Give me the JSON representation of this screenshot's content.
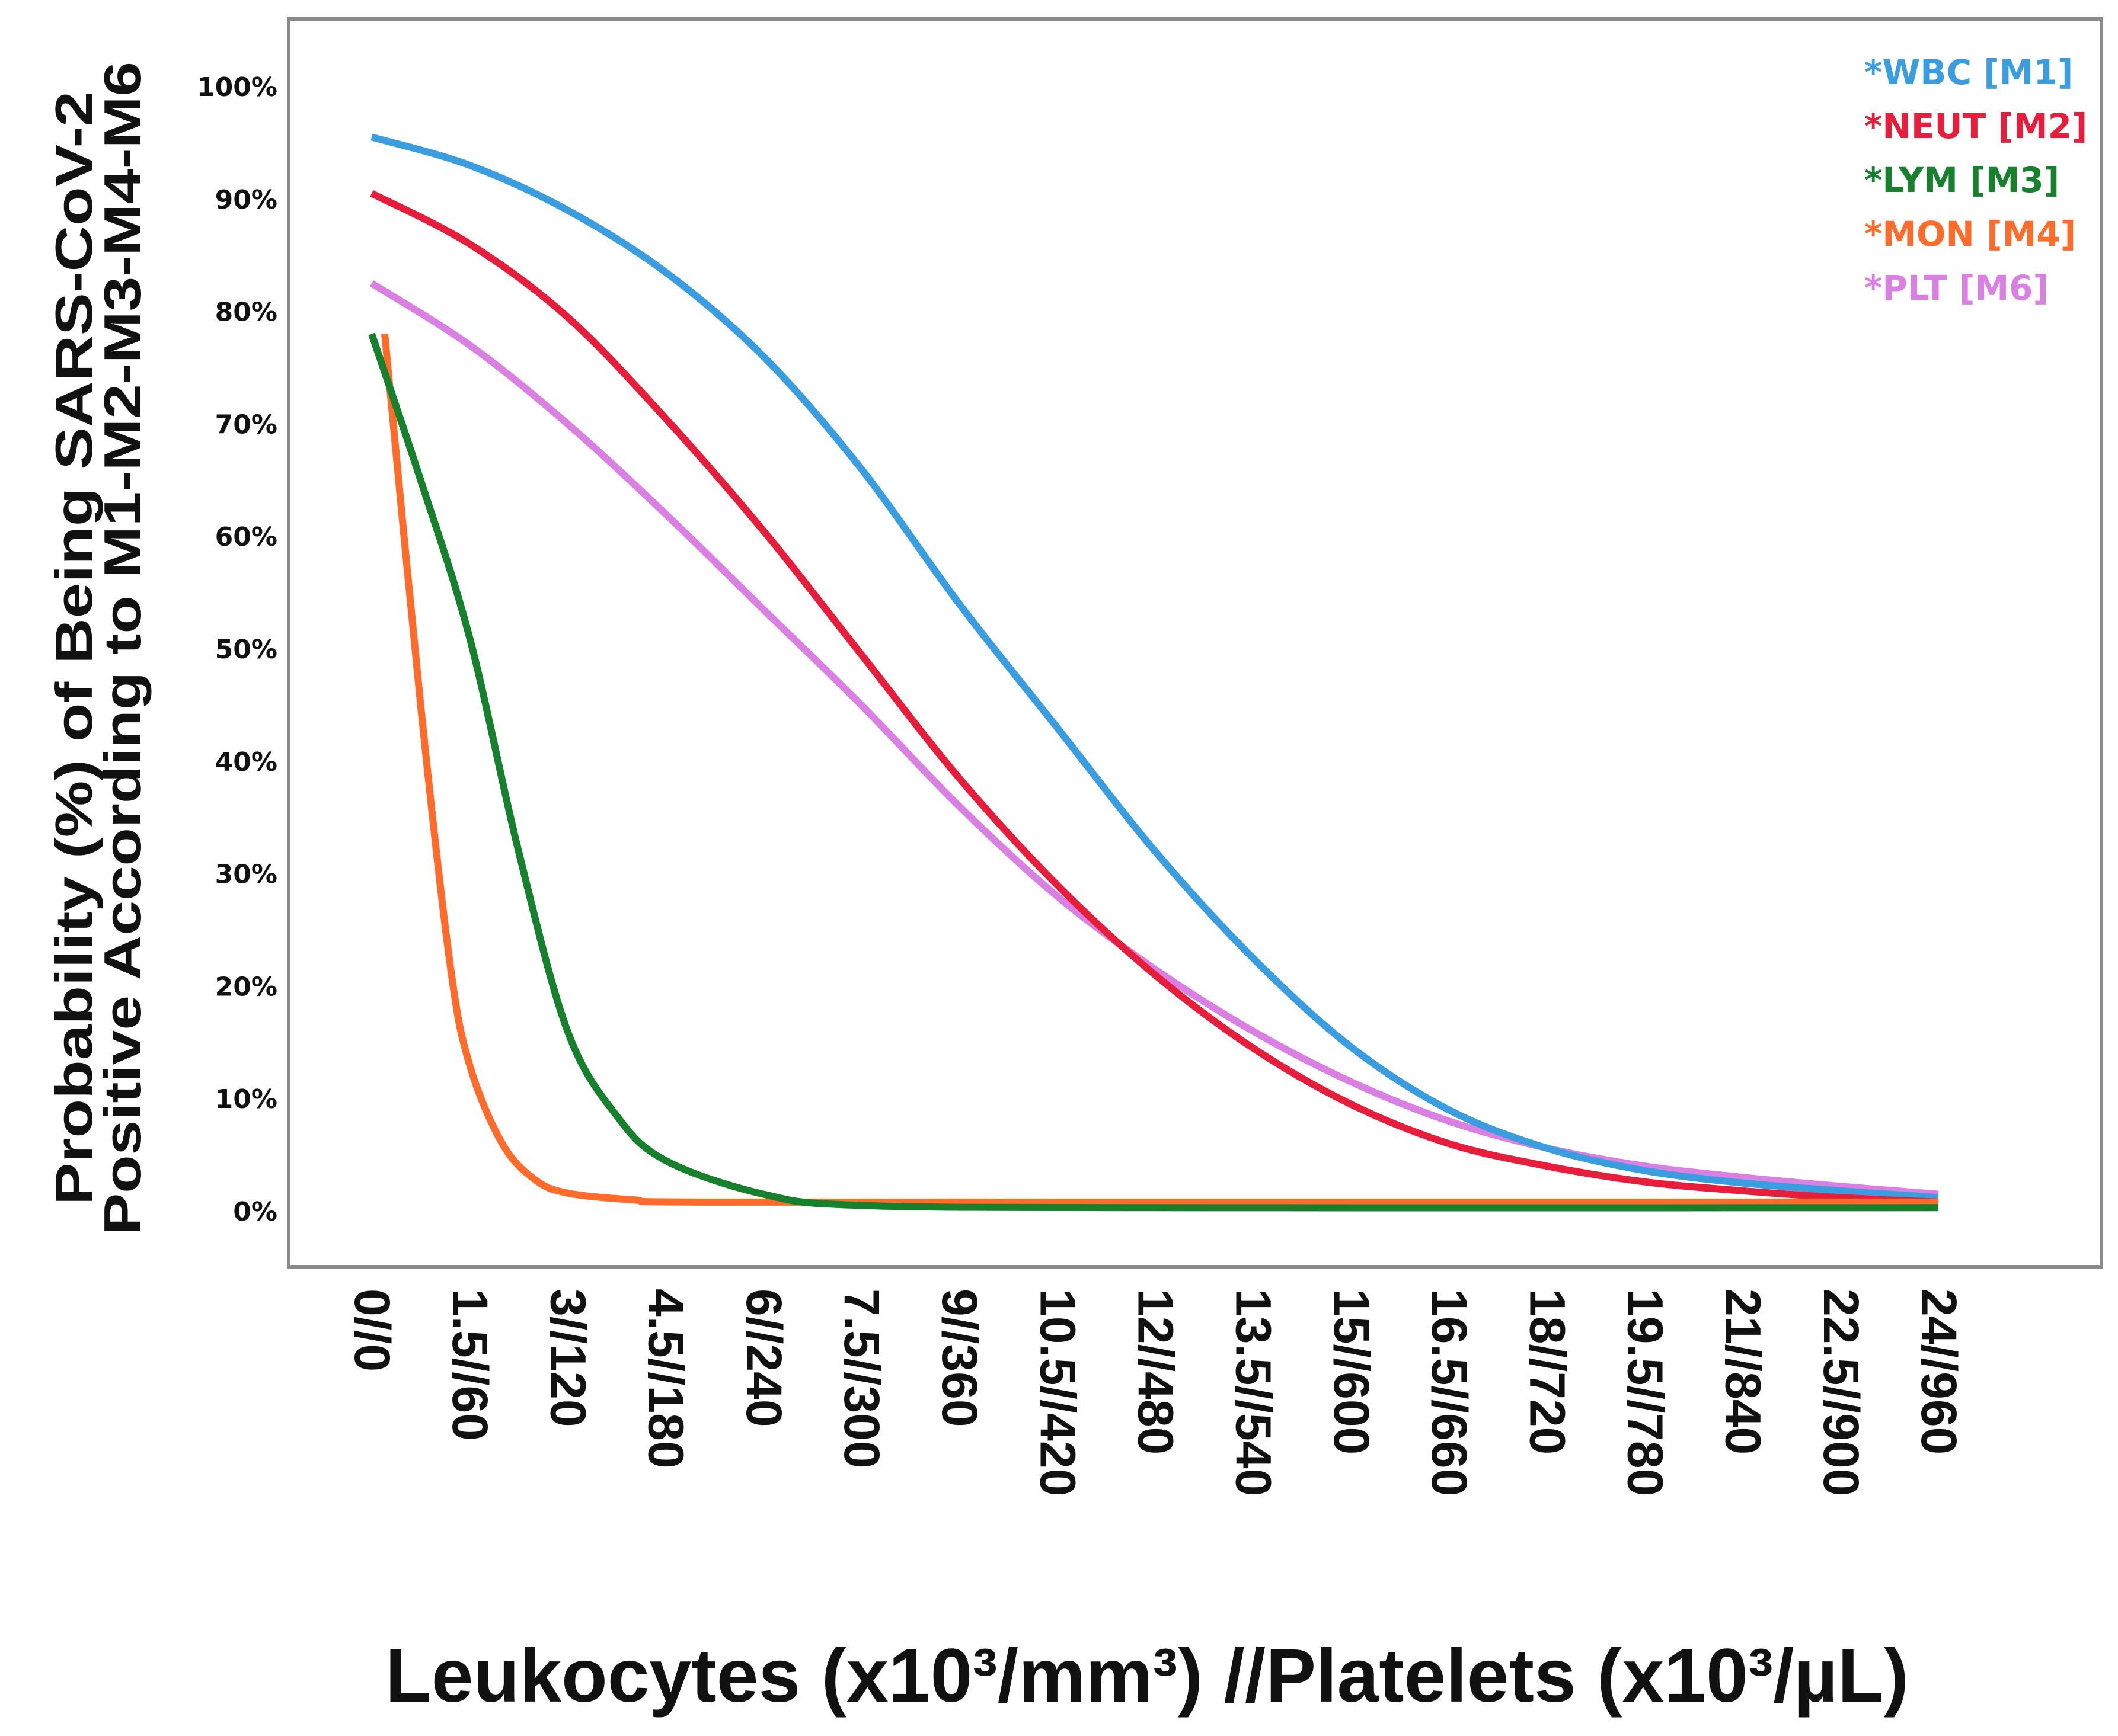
{
  "chart_data": {
    "type": "line",
    "title": "",
    "xlabel": "Leukocytes (x10³/mm³) //Platelets (x10³/µL)",
    "ylabel_lines": [
      "Probability (%) of Being SARS-CoV-2",
      "Positive According to M1-M2-M3-M4-M6"
    ],
    "xlim": [
      0,
      24
    ],
    "ylim": [
      0,
      100
    ],
    "x_ticks": [
      0,
      1.5,
      3,
      4.5,
      6,
      7.5,
      9,
      10.5,
      12,
      13.5,
      15,
      16.5,
      18,
      19.5,
      21,
      22.5,
      24
    ],
    "x_tick_labels": [
      "0//0",
      "1.5//60",
      "3//120",
      "4.5//180",
      "6//240",
      "7.5//300",
      "9//360",
      "10.5//420",
      "12//480",
      "13.5//540",
      "15//600",
      "16.5//660",
      "18//720",
      "19.5//780",
      "21//840",
      "22.5//900",
      "24//960"
    ],
    "y_ticks": [
      0,
      10,
      20,
      30,
      40,
      50,
      60,
      70,
      80,
      90,
      100
    ],
    "y_tick_labels": [
      "0%",
      "10%",
      "20%",
      "30%",
      "40%",
      "50%",
      "60%",
      "70%",
      "80%",
      "90%",
      "100%"
    ],
    "grid": false,
    "legend_position": "top-right",
    "series": [
      {
        "name": "*WBC [M1]",
        "color": "#3a9de0",
        "points": [
          [
            0,
            95.5
          ],
          [
            1.5,
            93
          ],
          [
            3,
            89
          ],
          [
            4.5,
            83.5
          ],
          [
            6,
            76
          ],
          [
            7.5,
            66
          ],
          [
            9,
            54
          ],
          [
            10.5,
            43
          ],
          [
            12,
            32
          ],
          [
            13.5,
            22.5
          ],
          [
            15,
            14.6
          ],
          [
            16.5,
            9
          ],
          [
            18,
            5.6
          ],
          [
            19.5,
            3.6
          ],
          [
            21,
            2.5
          ],
          [
            22.5,
            1.8
          ],
          [
            24,
            1.2
          ]
        ]
      },
      {
        "name": "*NEUT [M2]",
        "color": "#e61e3c",
        "points": [
          [
            0,
            90.5
          ],
          [
            1.5,
            86
          ],
          [
            3,
            79.5
          ],
          [
            4.5,
            70.5
          ],
          [
            6,
            60.5
          ],
          [
            7.5,
            49.5
          ],
          [
            9,
            38.5
          ],
          [
            10.5,
            29
          ],
          [
            12,
            21
          ],
          [
            13.5,
            14.5
          ],
          [
            15,
            9.5
          ],
          [
            16.5,
            6
          ],
          [
            18,
            4
          ],
          [
            19.5,
            2.6
          ],
          [
            21,
            1.8
          ],
          [
            22.5,
            1.2
          ],
          [
            24,
            0.8
          ]
        ]
      },
      {
        "name": "*LYM [M3]",
        "color": "#17802c",
        "points": [
          [
            0,
            78
          ],
          [
            0.75,
            65
          ],
          [
            1.5,
            51
          ],
          [
            2.25,
            32
          ],
          [
            3,
            16
          ],
          [
            3.75,
            8.5
          ],
          [
            4.5,
            4.5
          ],
          [
            6,
            1.5
          ],
          [
            7.5,
            0.5
          ],
          [
            12,
            0.3
          ],
          [
            24,
            0.3
          ]
        ]
      },
      {
        "name": "*MON [M4]",
        "color": "#ff6b2b",
        "points": [
          [
            0.2,
            78
          ],
          [
            0.75,
            45
          ],
          [
            1.2,
            22
          ],
          [
            1.5,
            13
          ],
          [
            2,
            6
          ],
          [
            2.5,
            2.8
          ],
          [
            3,
            1.6
          ],
          [
            4,
            1
          ],
          [
            5,
            0.8
          ],
          [
            12,
            0.8
          ],
          [
            24,
            0.8
          ]
        ]
      },
      {
        "name": "*PLT [M6]",
        "color": "#da80e2",
        "points": [
          [
            0,
            82.5
          ],
          [
            1.5,
            77
          ],
          [
            3,
            70
          ],
          [
            4.5,
            62
          ],
          [
            6,
            53.5
          ],
          [
            7.5,
            45
          ],
          [
            9,
            36
          ],
          [
            10.5,
            28
          ],
          [
            12,
            21.5
          ],
          [
            13.5,
            16
          ],
          [
            15,
            11.5
          ],
          [
            16.5,
            8
          ],
          [
            18,
            5.6
          ],
          [
            19.5,
            4
          ],
          [
            21,
            3
          ],
          [
            22.5,
            2.2
          ],
          [
            24,
            1.5
          ]
        ]
      }
    ]
  }
}
